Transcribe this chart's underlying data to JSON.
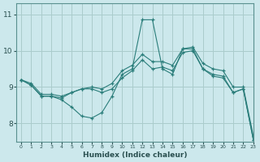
{
  "xlabel": "Humidex (Indice chaleur)",
  "background_color": "#cce8ec",
  "grid_color": "#aacccc",
  "line_color": "#2a7d7a",
  "spine_color": "#5a9090",
  "xlim": [
    -0.5,
    23
  ],
  "ylim": [
    7.5,
    11.3
  ],
  "yticks": [
    8,
    9,
    10,
    11
  ],
  "xticks": [
    0,
    1,
    2,
    3,
    4,
    5,
    6,
    7,
    8,
    9,
    10,
    11,
    12,
    13,
    14,
    15,
    16,
    17,
    18,
    19,
    20,
    21,
    22,
    23
  ],
  "series": [
    [
      9.2,
      9.05,
      8.75,
      8.75,
      8.65,
      8.45,
      8.2,
      8.15,
      8.3,
      8.75,
      9.35,
      9.5,
      10.85,
      10.85,
      9.5,
      9.35,
      10.05,
      10.05,
      9.5,
      9.3,
      9.25,
      8.85,
      8.95,
      7.55
    ],
    [
      9.2,
      9.05,
      8.75,
      8.75,
      8.7,
      8.85,
      8.95,
      8.95,
      8.85,
      8.95,
      9.25,
      9.45,
      9.75,
      9.5,
      9.55,
      9.45,
      9.95,
      10.0,
      9.5,
      9.35,
      9.3,
      8.85,
      8.95,
      7.55
    ],
    [
      9.2,
      9.1,
      8.8,
      8.8,
      8.75,
      8.85,
      8.95,
      9.0,
      8.95,
      9.1,
      9.45,
      9.6,
      9.9,
      9.7,
      9.7,
      9.6,
      10.05,
      10.1,
      9.65,
      9.5,
      9.45,
      9.0,
      9.0,
      7.65
    ]
  ]
}
